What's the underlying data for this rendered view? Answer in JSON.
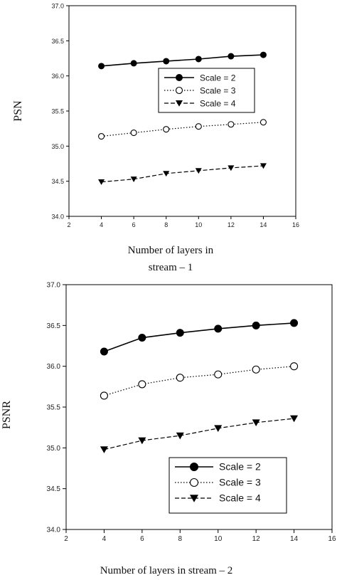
{
  "chart_data": [
    {
      "type": "line",
      "ylabel": "PSN",
      "xlabel_lines": [
        "Number of layers in",
        "stream – 1"
      ],
      "xlim": [
        2,
        16
      ],
      "ylim": [
        34.0,
        37.0
      ],
      "x_ticks": [
        "2",
        "4",
        "6",
        "8",
        "10",
        "12",
        "14",
        "16"
      ],
      "y_ticks": [
        "34.0",
        "34.5",
        "35.0",
        "35.5",
        "36.0",
        "36.5",
        "37.0"
      ],
      "legend_position": "upper-right",
      "x": [
        4,
        6,
        8,
        10,
        12,
        14
      ],
      "series": [
        {
          "name": "Scale = 2",
          "values": [
            36.14,
            36.18,
            36.21,
            36.24,
            36.28,
            36.3
          ],
          "marker": "filled-circle",
          "line": "solid"
        },
        {
          "name": "Scale = 3",
          "values": [
            35.14,
            35.19,
            35.24,
            35.28,
            35.31,
            35.34
          ],
          "marker": "open-circle",
          "line": "dotted"
        },
        {
          "name": "Scale = 4",
          "values": [
            34.49,
            34.53,
            34.61,
            34.65,
            34.69,
            34.72
          ],
          "marker": "filled-triangle-down",
          "line": "dashed"
        }
      ]
    },
    {
      "type": "line",
      "ylabel": "PSNR",
      "xlabel_lines": [
        "Number of layers in stream – 2"
      ],
      "xlim": [
        2,
        16
      ],
      "ylim": [
        34.0,
        37.0
      ],
      "x_ticks": [
        "2",
        "4",
        "6",
        "8",
        "10",
        "12",
        "14",
        "16"
      ],
      "y_ticks": [
        "34.0",
        "34.5",
        "35.0",
        "35.5",
        "36.0",
        "36.5",
        "37.0"
      ],
      "legend_position": "lower-right",
      "x": [
        4,
        6,
        8,
        10,
        12,
        14
      ],
      "series": [
        {
          "name": "Scale = 2",
          "values": [
            36.18,
            36.35,
            36.41,
            36.46,
            36.5,
            36.53
          ],
          "marker": "filled-circle",
          "line": "solid"
        },
        {
          "name": "Scale = 3",
          "values": [
            35.64,
            35.78,
            35.86,
            35.9,
            35.96,
            36.0
          ],
          "marker": "open-circle",
          "line": "dotted"
        },
        {
          "name": "Scale = 4",
          "values": [
            34.98,
            35.09,
            35.15,
            35.24,
            35.31,
            35.36
          ],
          "marker": "filled-triangle-down",
          "line": "dashed"
        }
      ]
    }
  ]
}
